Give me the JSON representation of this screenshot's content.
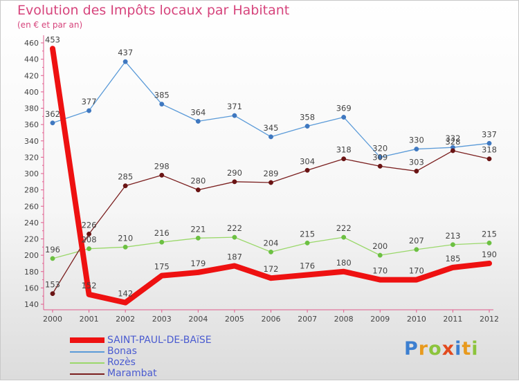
{
  "chart_data": {
    "type": "line",
    "title": "Evolution des Impôts locaux par Habitant",
    "subtitle": "(en € et par an)",
    "xlabel": "",
    "ylabel": "",
    "ylim": [
      140,
      460
    ],
    "ytick_step": 20,
    "grid": false,
    "legend_position": "bottom-left",
    "categories": [
      "2000",
      "2001",
      "2002",
      "2003",
      "2004",
      "2005",
      "2006",
      "2007",
      "2008",
      "2009",
      "2010",
      "2011",
      "2012"
    ],
    "series": [
      {
        "name": "SAINT-PAUL-DE-BAïSE",
        "color": "#ee1111",
        "width": 8,
        "marker": false,
        "values": [
          453,
          152,
          142,
          175,
          179,
          187,
          172,
          176,
          180,
          170,
          170,
          185,
          190
        ]
      },
      {
        "name": "Bonas",
        "color": "#5a9ad8",
        "width": 1.3,
        "marker": true,
        "marker_color": "#3f78c0",
        "values": [
          362,
          377,
          437,
          385,
          364,
          371,
          345,
          358,
          369,
          320,
          330,
          332,
          337
        ]
      },
      {
        "name": "Rozès",
        "color": "#9ad86a",
        "width": 1.3,
        "marker": true,
        "marker_color": "#6cc042",
        "values": [
          196,
          208,
          210,
          216,
          221,
          222,
          204,
          215,
          222,
          200,
          207,
          213,
          215
        ]
      },
      {
        "name": "Marambat",
        "color": "#7a1e1e",
        "width": 1.3,
        "marker": true,
        "marker_color": "#6a1414",
        "values": [
          153,
          226,
          285,
          298,
          280,
          290,
          289,
          304,
          318,
          309,
          303,
          328,
          318
        ]
      }
    ]
  },
  "legend_items": [
    "SAINT-PAUL-DE-BAïSE",
    "Bonas",
    "Rozès",
    "Marambat"
  ],
  "logo": {
    "p": "P",
    "r": "r",
    "o": "o",
    "x": "x",
    "i": "i",
    "t": "t",
    "i2": "i"
  }
}
